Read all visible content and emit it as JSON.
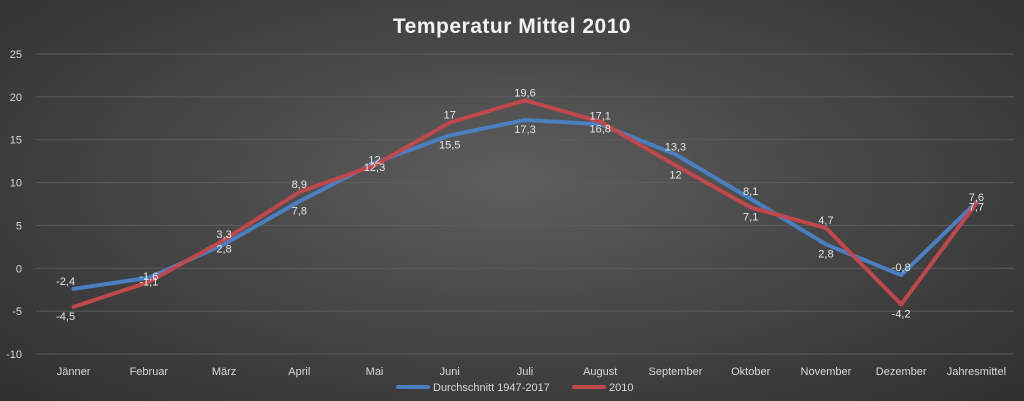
{
  "chart_data": {
    "type": "line",
    "title": "Temperatur Mittel 2010",
    "categories": [
      "Jänner",
      "Februar",
      "März",
      "April",
      "Mai",
      "Juni",
      "Juli",
      "August",
      "September",
      "Oktober",
      "November",
      "Dezember",
      "Jahresmittel"
    ],
    "series": [
      {
        "name": "Durchschnitt 1947-2017",
        "color": "#4a7fc1",
        "values": [
          -2.4,
          -1.1,
          2.8,
          7.8,
          12.3,
          15.5,
          17.3,
          16.8,
          13.3,
          8.1,
          2.8,
          -0.8,
          7.7
        ],
        "labels": [
          "-2,4",
          "-1,1",
          "2,8",
          "7,8",
          "12,3",
          "15,5",
          "17,3",
          "16,8",
          "13,3",
          "8,1",
          "2,8",
          "-0,8",
          "7,7"
        ]
      },
      {
        "name": "2010",
        "color": "#c0474a",
        "values": [
          -4.5,
          -1.6,
          3.3,
          8.9,
          12.0,
          17.0,
          19.6,
          17.1,
          12.0,
          7.1,
          4.7,
          -4.2,
          7.6
        ],
        "labels": [
          "-4,5",
          "-1,6",
          "3,3",
          "8,9",
          "12",
          "17",
          "19,6",
          "17,1",
          "12",
          "7,1",
          "4,7",
          "-4,2",
          "7,6"
        ]
      }
    ],
    "yticks": [
      "-10",
      "-5",
      "0",
      "5",
      "10",
      "15",
      "20",
      "25"
    ],
    "ylim": [
      -10,
      25
    ],
    "grid": true,
    "legend_position": "bottom",
    "xlabel": "",
    "ylabel": ""
  }
}
